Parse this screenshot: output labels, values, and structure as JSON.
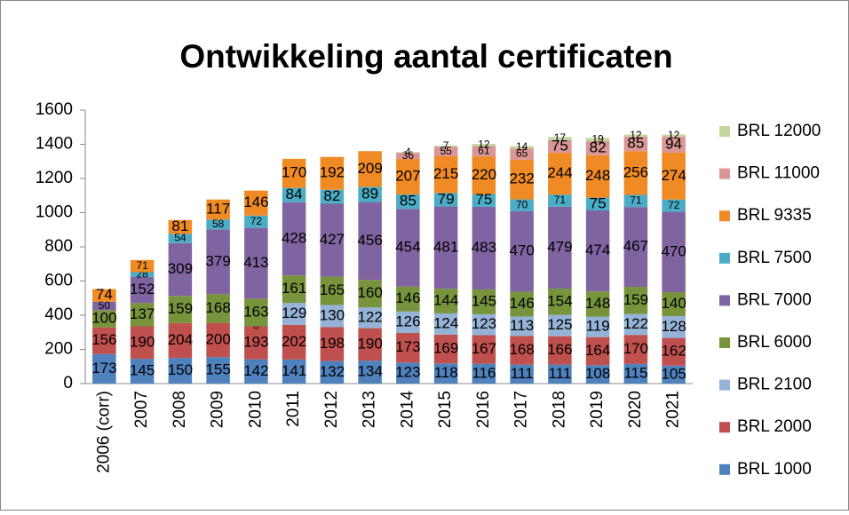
{
  "chart_data": {
    "type": "stacked_bar",
    "title": "Ontwikkeling aantal certificaten",
    "categories": [
      "2006 (corr)",
      "2007",
      "2008",
      "2009",
      "2010",
      "2011",
      "2012",
      "2013",
      "2014",
      "2015",
      "2016",
      "2017",
      "2018",
      "2019",
      "2020",
      "2021"
    ],
    "series": [
      {
        "name": "BRL 1000",
        "color": "#4f81bd",
        "values": [
          173,
          145,
          150,
          155,
          142,
          141,
          132,
          134,
          123,
          118,
          116,
          111,
          111,
          108,
          115,
          105
        ]
      },
      {
        "name": "BRL 2000",
        "color": "#c0504d",
        "values": [
          156,
          190,
          204,
          200,
          193,
          202,
          198,
          190,
          173,
          169,
          167,
          168,
          166,
          164,
          170,
          162
        ]
      },
      {
        "name": "BRL 2100",
        "color": "#95b3d7",
        "values": [
          null,
          null,
          null,
          null,
          0,
          129,
          130,
          122,
          126,
          124,
          123,
          113,
          125,
          119,
          122,
          128
        ]
      },
      {
        "name": "BRL 6000",
        "color": "#77933c",
        "values": [
          100,
          137,
          159,
          168,
          163,
          161,
          165,
          160,
          146,
          144,
          145,
          146,
          154,
          148,
          159,
          140
        ]
      },
      {
        "name": "BRL 7000",
        "color": "#8064a2",
        "values": [
          50,
          152,
          309,
          379,
          413,
          428,
          427,
          456,
          454,
          481,
          483,
          470,
          479,
          474,
          467,
          470
        ]
      },
      {
        "name": "BRL 7500",
        "color": "#4bacc6",
        "values": [
          null,
          28,
          54,
          58,
          72,
          84,
          82,
          89,
          85,
          79,
          75,
          70,
          71,
          75,
          71,
          72
        ]
      },
      {
        "name": "BRL 9335",
        "color": "#f08a24",
        "values": [
          74,
          71,
          81,
          117,
          146,
          170,
          192,
          209,
          207,
          215,
          220,
          232,
          244,
          248,
          256,
          274
        ]
      },
      {
        "name": "BRL 11000",
        "color": "#d99694",
        "values": [
          null,
          null,
          null,
          null,
          null,
          null,
          null,
          null,
          36,
          55,
          61,
          65,
          75,
          82,
          85,
          94
        ]
      },
      {
        "name": "BRL 12000",
        "color": "#c3d69b",
        "values": [
          null,
          null,
          null,
          null,
          null,
          null,
          null,
          null,
          4,
          7,
          12,
          14,
          17,
          19,
          12,
          12
        ]
      }
    ],
    "ylim": [
      0,
      1600
    ],
    "yticks": [
      0,
      200,
      400,
      600,
      800,
      1000,
      1200,
      1400,
      1600
    ],
    "grid": false
  }
}
